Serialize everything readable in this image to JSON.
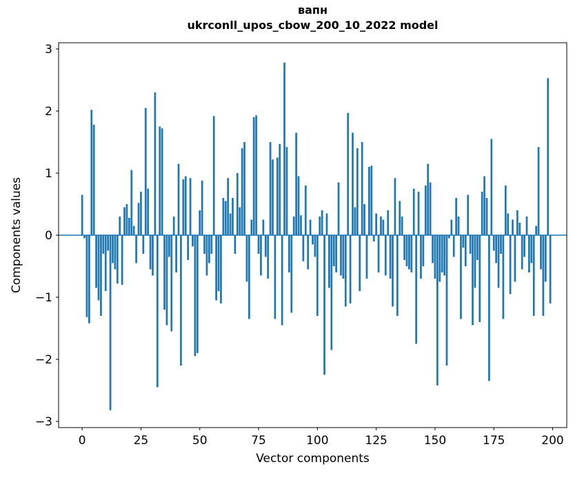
{
  "figure": {
    "title_line1": "вапн",
    "title_line2": "ukrconll_upos_cbow_200_10_2022 model"
  },
  "chart_data": {
    "type": "bar",
    "title": "вапн\nukrconll_upos_cbow_200_10_2022 model",
    "xlabel": "Vector components",
    "ylabel": "Components values",
    "xlim": [
      -10,
      206
    ],
    "ylim": [
      -3.1,
      3.1
    ],
    "xticks": [
      0,
      25,
      50,
      75,
      100,
      125,
      150,
      175,
      200
    ],
    "yticks": [
      -3,
      -2,
      -1,
      0,
      1,
      2,
      3
    ],
    "grid": false,
    "legend_position": "none",
    "bar_color": "#1f77b4",
    "bar_width": 0.8,
    "x_start": 0,
    "values": [
      0.65,
      -0.05,
      -1.32,
      -1.42,
      2.02,
      1.78,
      -0.85,
      -1.05,
      -1.3,
      -0.3,
      -0.9,
      -0.25,
      -2.82,
      -0.45,
      -0.55,
      -0.78,
      0.3,
      -0.8,
      0.45,
      0.5,
      0.28,
      1.05,
      0.15,
      -0.45,
      0.52,
      0.7,
      -0.3,
      2.05,
      0.75,
      -0.55,
      -0.65,
      2.3,
      -2.45,
      1.75,
      1.72,
      -1.2,
      -1.45,
      -0.35,
      -1.55,
      0.3,
      -0.6,
      1.15,
      -2.1,
      0.9,
      0.95,
      -0.4,
      0.92,
      -0.18,
      -1.95,
      -1.9,
      0.4,
      0.88,
      -0.3,
      -0.65,
      -0.45,
      -0.3,
      1.92,
      -1.05,
      -0.9,
      -1.1,
      0.6,
      0.55,
      0.92,
      0.35,
      0.6,
      -0.3,
      1.0,
      0.45,
      1.4,
      1.5,
      -0.75,
      -1.35,
      0.25,
      1.9,
      1.93,
      -0.3,
      -0.65,
      0.25,
      -0.35,
      -0.7,
      1.5,
      1.22,
      -1.35,
      1.25,
      1.47,
      -1.45,
      2.78,
      1.42,
      -0.6,
      -1.25,
      0.3,
      1.65,
      0.95,
      0.32,
      -0.42,
      0.8,
      -0.55,
      0.25,
      -0.15,
      -0.35,
      -1.3,
      0.3,
      0.4,
      -2.25,
      0.35,
      -0.85,
      -1.85,
      -0.5,
      -0.6,
      0.85,
      -0.65,
      -0.7,
      -1.15,
      1.97,
      -1.1,
      1.65,
      0.45,
      1.4,
      -0.9,
      1.5,
      0.5,
      -0.7,
      1.1,
      1.12,
      -0.1,
      0.35,
      -0.6,
      0.3,
      0.25,
      -0.65,
      0.4,
      -0.7,
      -1.15,
      0.92,
      -1.3,
      0.55,
      0.3,
      -0.4,
      -0.5,
      -0.55,
      -0.6,
      0.75,
      -1.75,
      0.7,
      -0.7,
      -0.5,
      0.8,
      1.15,
      0.85,
      -0.45,
      -0.7,
      -2.42,
      -0.75,
      -0.6,
      -0.65,
      -2.1,
      -0.05,
      0.25,
      -0.35,
      0.6,
      0.3,
      -1.35,
      -0.2,
      -0.5,
      0.65,
      -0.3,
      -1.45,
      -0.85,
      -0.4,
      -1.4,
      0.7,
      0.95,
      0.6,
      -2.35,
      1.55,
      -0.25,
      -0.45,
      -0.85,
      -0.3,
      -1.35,
      0.8,
      0.35,
      -0.95,
      0.25,
      -0.75,
      0.4,
      0.2,
      -0.55,
      -0.35,
      0.3,
      -0.6,
      -0.45,
      -1.3,
      0.15,
      1.42,
      -0.55,
      -1.3,
      -0.75,
      2.53,
      -1.1
    ]
  }
}
